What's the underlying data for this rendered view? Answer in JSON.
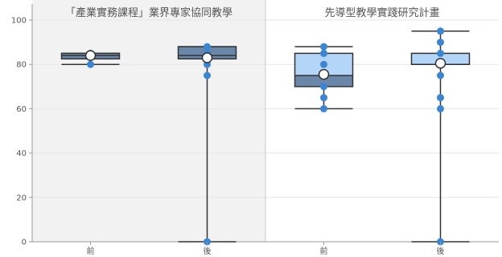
{
  "chart_data": {
    "type": "boxplot",
    "ylim": [
      0,
      100
    ],
    "y_ticks": [
      "0",
      "20",
      "40",
      "60",
      "80",
      "100"
    ],
    "categories": [
      "前",
      "後"
    ],
    "grid": true,
    "panels": [
      {
        "title": "「產業實務課程」業界專家協同教學",
        "shaded": true,
        "boxes": [
          {
            "category": "前",
            "min": 80,
            "q1": 82.5,
            "median": 84,
            "q3": 85,
            "max": 85,
            "mean": 84,
            "points": [
              80,
              84,
              85
            ]
          },
          {
            "category": "後",
            "min": 0,
            "q1": 82.5,
            "median": 84,
            "q3": 88,
            "max": 88,
            "mean": 83,
            "points": [
              0,
              75,
              80,
              85,
              88
            ]
          }
        ]
      },
      {
        "title": "先導型教學實踐研究計畫",
        "shaded": false,
        "boxes": [
          {
            "category": "前",
            "min": 60,
            "q1": 70,
            "median": 75,
            "q3": 85,
            "max": 88,
            "mean": 75.5,
            "points": [
              60,
              65,
              70,
              75,
              80,
              85,
              88
            ]
          },
          {
            "category": "後",
            "min": 0,
            "q1": 80,
            "median": 80,
            "q3": 85,
            "max": 95,
            "mean": 80.5,
            "points": [
              0,
              60,
              65,
              75,
              80,
              85,
              90,
              95
            ]
          }
        ]
      }
    ]
  },
  "colors": {
    "panel_shade": "#f2f2f2",
    "grid": "#e6e6e6",
    "axis": "#999999",
    "whisker": "#333333",
    "box_dark": "#6a86a8",
    "box_light": "#b3d5f7",
    "point": "#3a86d4",
    "mean_fill": "#ffffff"
  }
}
